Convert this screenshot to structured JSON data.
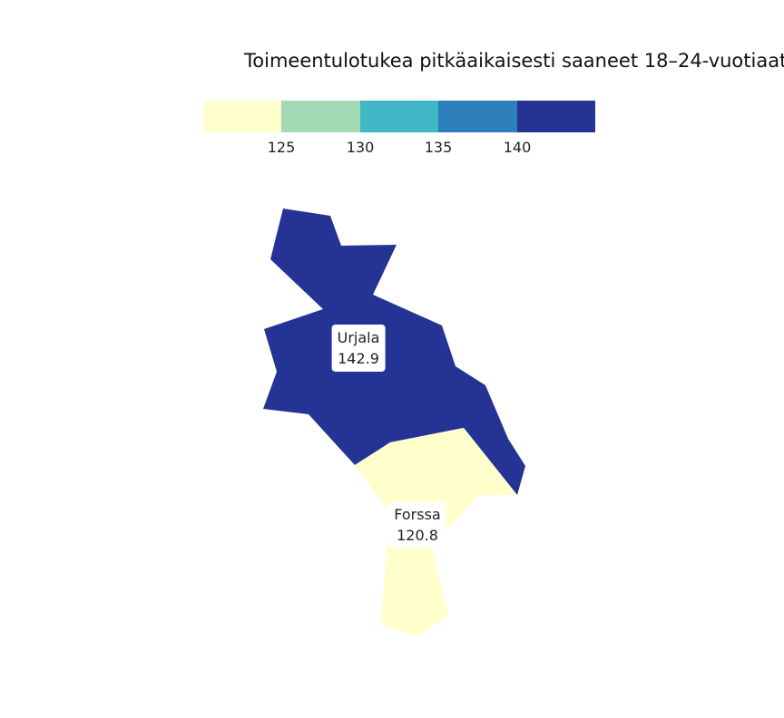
{
  "title": "Toimeentulotukea pitkäaikaisesti saaneet 18–24-vuotiaat",
  "legend": {
    "colors": [
      "#ffffcc",
      "#a1dab4",
      "#41b6c4",
      "#2c7fb8",
      "#253494"
    ],
    "ticks": [
      "125",
      "130",
      "135",
      "140"
    ]
  },
  "regions": [
    {
      "name": "Urjala",
      "value": "142.9",
      "color": "#253494"
    },
    {
      "name": "Forssa",
      "value": "120.8",
      "color": "#ffffcc"
    }
  ]
}
